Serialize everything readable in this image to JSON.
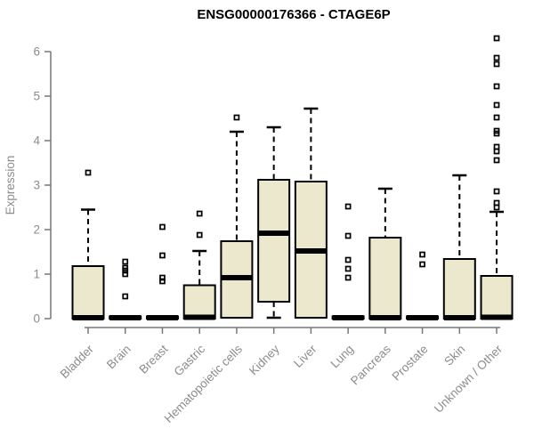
{
  "chart_data": {
    "type": "boxplot",
    "title": "ENSG00000176366 - CTAGE6P",
    "ylabel": "Expression",
    "xlabel": "",
    "ylim": [
      0,
      6.4
    ],
    "yticks": [
      0,
      1,
      2,
      3,
      4,
      5,
      6
    ],
    "grid": false,
    "legend": "none",
    "colors": {
      "box_fill": "#ece8cd",
      "box_stroke": "#000000",
      "median": "#000000",
      "whisker": "#000000",
      "outlier": "#000000",
      "axis_line": "#777777",
      "axis_text": "#8c8c8c",
      "title_text": "#000000",
      "background": "#ffffff"
    },
    "categories": [
      "Bladder",
      "Brain",
      "Breast",
      "Gastric",
      "Hematopoietic cells",
      "Kidney",
      "Liver",
      "Lung",
      "Pancreas",
      "Prostate",
      "Skin",
      "Unknown / Other"
    ],
    "boxes": [
      {
        "category": "Bladder",
        "q1": 0,
        "median": 0.02,
        "q3": 1.18,
        "whisker_low": 0,
        "whisker_high": 2.45,
        "outliers": [
          3.28
        ]
      },
      {
        "category": "Brain",
        "q1": 0,
        "median": 0.02,
        "q3": 0.05,
        "whisker_low": 0,
        "whisker_high": 0.05,
        "outliers": [
          0.5,
          1.0,
          1.08,
          1.14,
          1.28
        ]
      },
      {
        "category": "Breast",
        "q1": 0,
        "median": 0.02,
        "q3": 0.05,
        "whisker_low": 0,
        "whisker_high": 0.05,
        "outliers": [
          0.84,
          0.92,
          1.42,
          2.06
        ]
      },
      {
        "category": "Gastric",
        "q1": 0,
        "median": 0.03,
        "q3": 0.75,
        "whisker_low": 0,
        "whisker_high": 1.52,
        "outliers": [
          1.88,
          2.36
        ]
      },
      {
        "category": "Hematopoietic cells",
        "q1": 0.02,
        "median": 0.92,
        "q3": 1.74,
        "whisker_low": 0,
        "whisker_high": 4.2,
        "outliers": [
          4.52
        ]
      },
      {
        "category": "Kidney",
        "q1": 0.38,
        "median": 1.92,
        "q3": 3.12,
        "whisker_low": 0.02,
        "whisker_high": 4.3,
        "outliers": []
      },
      {
        "category": "Liver",
        "q1": 0.02,
        "median": 1.52,
        "q3": 3.08,
        "whisker_low": 0,
        "whisker_high": 4.72,
        "outliers": []
      },
      {
        "category": "Lung",
        "q1": 0,
        "median": 0.02,
        "q3": 0.05,
        "whisker_low": 0,
        "whisker_high": 0.05,
        "outliers": [
          0.92,
          1.12,
          1.32,
          1.86,
          2.52
        ]
      },
      {
        "category": "Pancreas",
        "q1": 0,
        "median": 0.02,
        "q3": 1.82,
        "whisker_low": 0,
        "whisker_high": 2.92,
        "outliers": []
      },
      {
        "category": "Prostate",
        "q1": 0,
        "median": 0.02,
        "q3": 0.05,
        "whisker_low": 0,
        "whisker_high": 0.05,
        "outliers": [
          1.22,
          1.44
        ]
      },
      {
        "category": "Skin",
        "q1": 0,
        "median": 0.02,
        "q3": 1.34,
        "whisker_low": 0,
        "whisker_high": 3.22,
        "outliers": []
      },
      {
        "category": "Unknown / Other",
        "q1": 0,
        "median": 0.03,
        "q3": 0.96,
        "whisker_low": 0,
        "whisker_high": 2.4,
        "outliers": [
          2.5,
          2.6,
          2.86,
          3.56,
          3.76,
          3.86,
          4.16,
          4.22,
          4.52,
          4.8,
          5.22,
          5.72,
          5.86,
          6.3
        ]
      }
    ]
  }
}
